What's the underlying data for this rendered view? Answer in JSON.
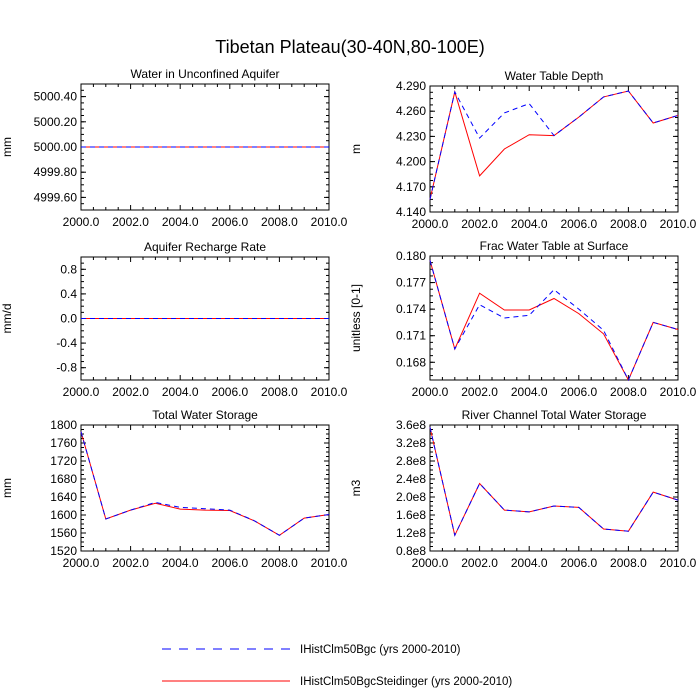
{
  "figure": {
    "title": "Tibetan Plateau(30-40N,80-100E)"
  },
  "legend": {
    "entries": [
      {
        "label": "IHistClm50Bgc (yrs 2000-2010)",
        "color": "#0000ff",
        "dash": "dashed"
      },
      {
        "label": "IHistClm50BgcSteidinger (yrs 2000-2010)",
        "color": "#ff0000",
        "dash": "solid"
      }
    ]
  },
  "chart_data": [
    {
      "type": "line",
      "title": "Water in Unconfined Aquifer",
      "ylabel": "mm",
      "xlim": [
        2000,
        2010
      ],
      "ylim": [
        4999.5,
        5000.5
      ],
      "xticks": [
        "2000.0",
        "2002.0",
        "2004.0",
        "2006.0",
        "2008.0",
        "2010.0"
      ],
      "yticks": [
        {
          "v": 4999.6,
          "label": "4999.60"
        },
        {
          "v": 4999.8,
          "label": "4999.80"
        },
        {
          "v": 5000.0,
          "label": "5000.00"
        },
        {
          "v": 5000.2,
          "label": "5000.20"
        },
        {
          "v": 5000.4,
          "label": "5000.40"
        }
      ],
      "x": [
        2000,
        2001,
        2002,
        2003,
        2004,
        2005,
        2006,
        2007,
        2008,
        2009,
        2010
      ],
      "series": [
        {
          "name": "IHistClm50Bgc (yrs 2000-2010)",
          "values": [
            5000,
            5000,
            5000,
            5000,
            5000,
            5000,
            5000,
            5000,
            5000,
            5000,
            5000
          ]
        },
        {
          "name": "IHistClm50BgcSteidinger (yrs 2000-2010)",
          "values": [
            5000,
            5000,
            5000,
            5000,
            5000,
            5000,
            5000,
            5000,
            5000,
            5000,
            5000
          ]
        }
      ]
    },
    {
      "type": "line",
      "title": "Water Table Depth",
      "ylabel": "m",
      "xlim": [
        2000,
        2010
      ],
      "ylim": [
        4.14,
        4.29
      ],
      "xticks": [
        "2000.0",
        "2002.0",
        "2004.0",
        "2006.0",
        "2008.0",
        "2010.0"
      ],
      "yticks": [
        {
          "v": 4.14,
          "label": "4.140"
        },
        {
          "v": 4.17,
          "label": "4.170"
        },
        {
          "v": 4.2,
          "label": "4.200"
        },
        {
          "v": 4.23,
          "label": "4.230"
        },
        {
          "v": 4.26,
          "label": "4.260"
        },
        {
          "v": 4.29,
          "label": "4.290"
        }
      ],
      "x": [
        2000,
        2001,
        2002,
        2003,
        2004,
        2005,
        2006,
        2007,
        2008,
        2009,
        2010
      ],
      "series": [
        {
          "name": "IHistClm50Bgc (yrs 2000-2010)",
          "values": [
            4.155,
            4.283,
            4.228,
            4.258,
            4.269,
            4.231,
            4.253,
            4.277,
            4.284,
            4.246,
            4.255
          ]
        },
        {
          "name": "IHistClm50BgcSteidinger (yrs 2000-2010)",
          "values": [
            4.155,
            4.283,
            4.183,
            4.215,
            4.232,
            4.231,
            4.253,
            4.277,
            4.284,
            4.246,
            4.255
          ]
        }
      ]
    },
    {
      "type": "line",
      "title": "Aquifer Recharge Rate",
      "ylabel": "mm/d",
      "xlim": [
        2000,
        2010
      ],
      "ylim": [
        -1.0,
        1.0
      ],
      "xticks": [
        "2000.0",
        "2002.0",
        "2004.0",
        "2006.0",
        "2008.0",
        "2010.0"
      ],
      "yticks": [
        {
          "v": -0.8,
          "label": "-0.8"
        },
        {
          "v": -0.4,
          "label": "-0.4"
        },
        {
          "v": 0.0,
          "label": "0.0"
        },
        {
          "v": 0.4,
          "label": "0.4"
        },
        {
          "v": 0.8,
          "label": "0.8"
        }
      ],
      "x": [
        2000,
        2001,
        2002,
        2003,
        2004,
        2005,
        2006,
        2007,
        2008,
        2009,
        2010
      ],
      "series": [
        {
          "name": "IHistClm50Bgc (yrs 2000-2010)",
          "values": [
            0,
            0,
            0,
            0,
            0,
            0,
            0,
            0,
            0,
            0,
            0
          ]
        },
        {
          "name": "IHistClm50BgcSteidinger (yrs 2000-2010)",
          "values": [
            0,
            0,
            0,
            0,
            0,
            0,
            0,
            0,
            0,
            0,
            0
          ]
        }
      ]
    },
    {
      "type": "line",
      "title": "Frac Water Table at Surface",
      "ylabel": "unitless [0-1]",
      "xlim": [
        2000,
        2010
      ],
      "ylim": [
        0.166,
        0.18
      ],
      "xticks": [
        "2000.0",
        "2002.0",
        "2004.0",
        "2006.0",
        "2008.0",
        "2010.0"
      ],
      "yticks": [
        {
          "v": 0.168,
          "label": "0.168"
        },
        {
          "v": 0.171,
          "label": "0.171"
        },
        {
          "v": 0.174,
          "label": "0.174"
        },
        {
          "v": 0.177,
          "label": "0.177"
        },
        {
          "v": 0.18,
          "label": "0.180"
        }
      ],
      "x": [
        2000,
        2001,
        2002,
        2003,
        2004,
        2005,
        2006,
        2007,
        2008,
        2009,
        2010
      ],
      "series": [
        {
          "name": "IHistClm50Bgc (yrs 2000-2010)",
          "values": [
            0.1795,
            0.1695,
            0.1745,
            0.173,
            0.1733,
            0.1762,
            0.174,
            0.1716,
            0.166,
            0.1725,
            0.1717
          ]
        },
        {
          "name": "IHistClm50BgcSteidinger (yrs 2000-2010)",
          "values": [
            0.1795,
            0.1695,
            0.1758,
            0.1739,
            0.1739,
            0.1752,
            0.1735,
            0.1712,
            0.166,
            0.1725,
            0.1717
          ]
        }
      ]
    },
    {
      "type": "line",
      "title": "Total Water Storage",
      "ylabel": "mm",
      "xlim": [
        2000,
        2010
      ],
      "ylim": [
        1520,
        1800
      ],
      "xticks": [
        "2000.0",
        "2002.0",
        "2004.0",
        "2006.0",
        "2008.0",
        "2010.0"
      ],
      "yticks": [
        {
          "v": 1520,
          "label": "1520"
        },
        {
          "v": 1560,
          "label": "1560"
        },
        {
          "v": 1600,
          "label": "1600"
        },
        {
          "v": 1640,
          "label": "1640"
        },
        {
          "v": 1680,
          "label": "1680"
        },
        {
          "v": 1720,
          "label": "1720"
        },
        {
          "v": 1760,
          "label": "1760"
        },
        {
          "v": 1800,
          "label": "1800"
        }
      ],
      "x": [
        2000,
        2001,
        2002,
        2003,
        2004,
        2005,
        2006,
        2007,
        2008,
        2009,
        2010
      ],
      "series": [
        {
          "name": "IHistClm50Bgc (yrs 2000-2010)",
          "values": [
            1785,
            1591,
            1611,
            1628,
            1617,
            1614,
            1611,
            1587,
            1555,
            1593,
            1601
          ]
        },
        {
          "name": "IHistClm50BgcSteidinger (yrs 2000-2010)",
          "values": [
            1785,
            1591,
            1611,
            1626,
            1613,
            1611,
            1610,
            1587,
            1555,
            1593,
            1601
          ]
        }
      ]
    },
    {
      "type": "line",
      "title": "River Channel Total Water Storage",
      "ylabel": "m3",
      "xlim": [
        2000,
        2010
      ],
      "ylim": [
        80000000,
        360000000
      ],
      "xticks": [
        "2000.0",
        "2002.0",
        "2004.0",
        "2006.0",
        "2008.0",
        "2010.0"
      ],
      "yticks": [
        {
          "v": 80000000,
          "label": "0.8e8"
        },
        {
          "v": 120000000,
          "label": "1.2e8"
        },
        {
          "v": 160000000,
          "label": "1.6e8"
        },
        {
          "v": 200000000,
          "label": "2.0e8"
        },
        {
          "v": 240000000,
          "label": "2.4e8"
        },
        {
          "v": 280000000,
          "label": "2.8e8"
        },
        {
          "v": 320000000,
          "label": "3.2e8"
        },
        {
          "v": 360000000,
          "label": "3.6e8"
        }
      ],
      "x": [
        2000,
        2001,
        2002,
        2003,
        2004,
        2005,
        2006,
        2007,
        2008,
        2009,
        2010
      ],
      "series": [
        {
          "name": "IHistClm50Bgc (yrs 2000-2010)",
          "values": [
            355000000,
            115000000,
            230000000,
            171000000,
            167000000,
            180000000,
            177000000,
            129000000,
            124000000,
            211000000,
            193000000
          ]
        },
        {
          "name": "IHistClm50BgcSteidinger (yrs 2000-2010)",
          "values": [
            355000000,
            115000000,
            230000000,
            171000000,
            167000000,
            180000000,
            177000000,
            129000000,
            124000000,
            211000000,
            193000000
          ]
        }
      ]
    }
  ]
}
